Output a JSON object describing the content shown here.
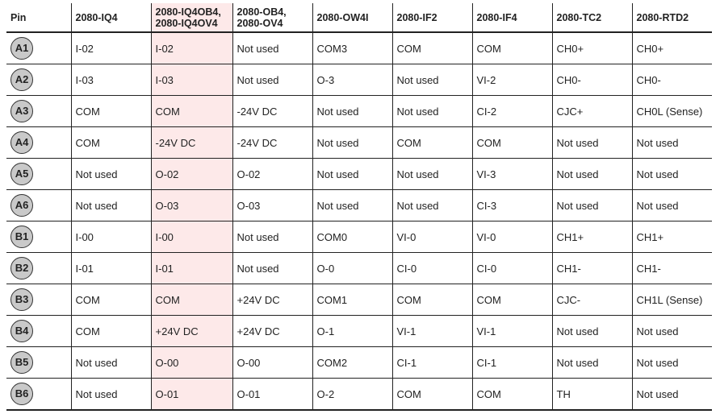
{
  "table": {
    "columns": [
      "Pin",
      "2080-IQ4",
      "2080-IQ4OB4,\n2080-IQ4OV4",
      "2080-OB4,\n2080-OV4",
      "2080-OW4I",
      "2080-IF2",
      "2080-IF4",
      "2080-TC2",
      "2080-RTD2"
    ],
    "rows": [
      [
        "A1",
        "I-02",
        "I-02",
        "Not used",
        "COM3",
        "COM",
        "COM",
        "CH0+",
        "CH0+"
      ],
      [
        "A2",
        "I-03",
        "I-03",
        "Not used",
        "O-3",
        "Not used",
        "VI-2",
        "CH0-",
        "CH0-"
      ],
      [
        "A3",
        "COM",
        "COM",
        "-24V DC",
        "Not used",
        "Not used",
        "CI-2",
        "CJC+",
        "CH0L (Sense)"
      ],
      [
        "A4",
        "COM",
        "-24V DC",
        "-24V DC",
        "Not used",
        "COM",
        "COM",
        "Not used",
        "Not used"
      ],
      [
        "A5",
        "Not used",
        "O-02",
        "O-02",
        "Not used",
        "Not used",
        "VI-3",
        "Not used",
        "Not used"
      ],
      [
        "A6",
        "Not used",
        "O-03",
        "O-03",
        "Not used",
        "Not used",
        "CI-3",
        "Not used",
        "Not used"
      ],
      [
        "B1",
        "I-00",
        "I-00",
        "Not used",
        "COM0",
        "VI-0",
        "VI-0",
        "CH1+",
        "CH1+"
      ],
      [
        "B2",
        "I-01",
        "I-01",
        "Not used",
        "O-0",
        "CI-0",
        "CI-0",
        "CH1-",
        "CH1-"
      ],
      [
        "B3",
        "COM",
        "COM",
        "+24V DC",
        "COM1",
        "COM",
        "COM",
        "CJC-",
        "CH1L (Sense)"
      ],
      [
        "B4",
        "COM",
        "+24V DC",
        "+24V DC",
        "O-1",
        "VI-1",
        "VI-1",
        "Not used",
        "Not used"
      ],
      [
        "B5",
        "Not used",
        "O-00",
        "O-00",
        "COM2",
        "CI-1",
        "CI-1",
        "Not used",
        "Not used"
      ],
      [
        "B6",
        "Not used",
        "O-01",
        "O-01",
        "O-2",
        "COM",
        "COM",
        "TH",
        "Not used"
      ]
    ]
  }
}
